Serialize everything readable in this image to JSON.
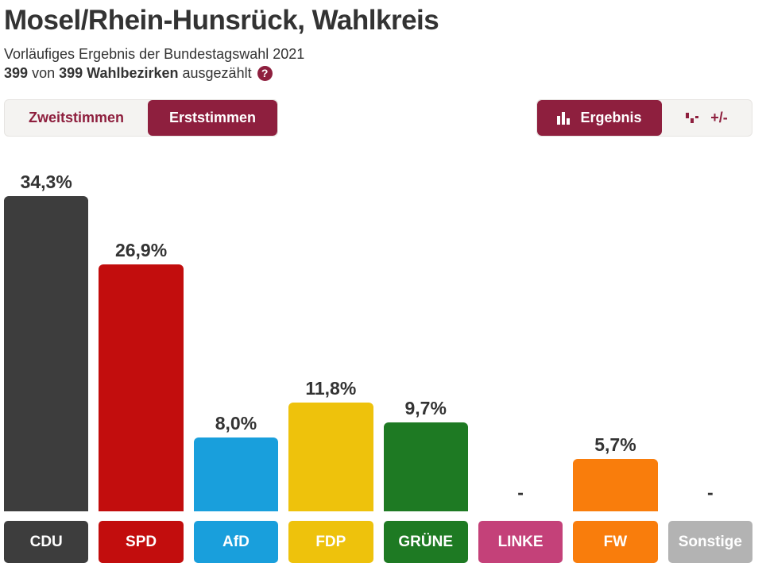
{
  "header": {
    "title": "Mosel/Rhein-Hunsrück, Wahlkreis",
    "subtitle": "Vorläufiges Ergebnis der Bundestagswahl 2021",
    "counted": {
      "count": "399",
      "of_word": "von",
      "total": "399 Wahlbezirken",
      "suffix": "ausgezählt",
      "help_glyph": "?"
    }
  },
  "toolbar": {
    "tabs": [
      {
        "label": "Zweitstimmen",
        "active": false
      },
      {
        "label": "Erststimmen",
        "active": true
      }
    ],
    "views": [
      {
        "label": "Ergebnis",
        "icon": "bar-chart-icon",
        "active": true
      },
      {
        "label": "+/-",
        "icon": "plus-minus-icon",
        "active": false
      }
    ]
  },
  "colors": {
    "brand_maroon": "#8e1f3e",
    "light_button_bg": "#f4f3f1",
    "text_dark": "#333333",
    "page_bg": "#ffffff"
  },
  "chart_data": {
    "type": "bar",
    "title": "Erststimmen Ergebnis Bundestagswahl 2021, Wahlkreis Mosel/Rhein-Hunsrück",
    "categories": [
      "CDU",
      "SPD",
      "AfD",
      "FDP",
      "GRÜNE",
      "LINKE",
      "FW",
      "Sonstige"
    ],
    "values": [
      34.3,
      26.9,
      8.0,
      11.8,
      9.7,
      null,
      5.7,
      null
    ],
    "value_labels": [
      "34,3%",
      "26,9%",
      "8,0%",
      "11,8%",
      "9,7%",
      "-",
      "5,7%",
      "-"
    ],
    "bar_colors": [
      "#3d3d3d",
      "#c20d0d",
      "#199fdc",
      "#eec20c",
      "#1e7a23",
      "#c44179",
      "#f97d0c",
      "#b3b3b3"
    ],
    "null_marker": "-",
    "xlabel": "",
    "ylabel": "",
    "ylim": [
      0,
      35
    ],
    "grid": false,
    "legend_position": "bottom"
  }
}
